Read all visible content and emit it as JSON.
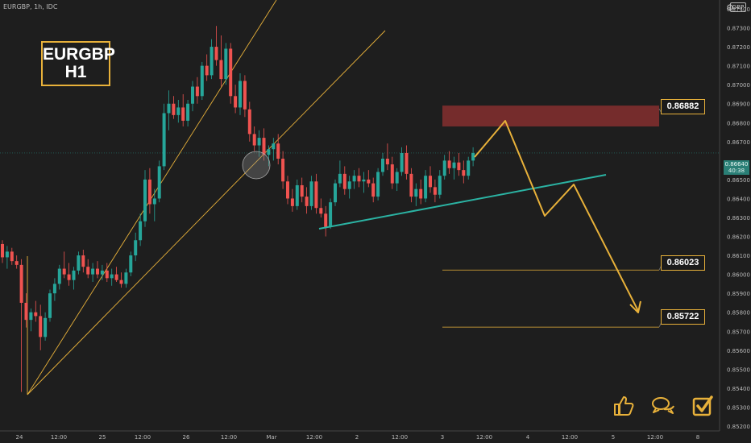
{
  "header": {
    "symbol_line": "EURGBP, 1h, IDC"
  },
  "title": {
    "line1": "EURGBP",
    "line2": "H1"
  },
  "currency_badge": "GBP",
  "current_price": {
    "value": "0.86640",
    "countdown": "40:38"
  },
  "level_labels": [
    "0.86882",
    "0.86023",
    "0.85722"
  ],
  "colors": {
    "background": "#1e1e1e",
    "bull": "#26a69a",
    "bear": "#ef5350",
    "annotation": "#e8b13a",
    "trendline": "#2bb3a3",
    "zone": "#8b2f2f"
  },
  "icons": [
    "thumbs-up-icon",
    "chat-icon",
    "checkbox-icon"
  ],
  "chart_data": {
    "type": "candlestick",
    "y_axis": {
      "range": [
        0.8519,
        0.8755
      ],
      "tick_labels": [
        "0.87400",
        "0.87300",
        "0.87200",
        "0.87100",
        "0.87000",
        "0.86900",
        "0.86800",
        "0.86700",
        "0.86640",
        "0.86500",
        "0.86400",
        "0.86300",
        "0.86200",
        "0.86100",
        "0.86000",
        "0.85900",
        "0.85800",
        "0.85700",
        "0.85600",
        "0.85500",
        "0.85400",
        "0.85300",
        "0.85200"
      ]
    },
    "x_axis": {
      "tick_labels": [
        "24",
        "12:00",
        "25",
        "12:00",
        "26",
        "12:00",
        "Mar",
        "12:00",
        "2",
        "12:00",
        "3",
        "12:00",
        "4",
        "12:00",
        "5",
        "12:00",
        "8"
      ]
    },
    "grid": false,
    "zone": {
      "from": 0.8678,
      "to": 0.8689
    },
    "levels": [
      0.86023,
      0.85722
    ],
    "candles": [
      [
        0.8616,
        0.8618,
        0.8606,
        0.8609
      ],
      [
        0.8609,
        0.8615,
        0.8603,
        0.8612
      ],
      [
        0.8612,
        0.8614,
        0.8605,
        0.8607
      ],
      [
        0.8607,
        0.861,
        0.8603,
        0.8605
      ],
      [
        0.8605,
        0.8608,
        0.8538,
        0.8585
      ],
      [
        0.8585,
        0.859,
        0.8572,
        0.8576
      ],
      [
        0.8576,
        0.8582,
        0.857,
        0.858
      ],
      [
        0.858,
        0.8586,
        0.8575,
        0.8578
      ],
      [
        0.8578,
        0.8584,
        0.856,
        0.8567
      ],
      [
        0.8567,
        0.858,
        0.8565,
        0.8577
      ],
      [
        0.8577,
        0.8592,
        0.8575,
        0.859
      ],
      [
        0.859,
        0.8598,
        0.8586,
        0.8595
      ],
      [
        0.8595,
        0.8605,
        0.8592,
        0.8603
      ],
      [
        0.8603,
        0.8612,
        0.8598,
        0.86
      ],
      [
        0.86,
        0.8606,
        0.8594,
        0.8597
      ],
      [
        0.8597,
        0.8604,
        0.8592,
        0.8602
      ],
      [
        0.8602,
        0.8612,
        0.86,
        0.861
      ],
      [
        0.861,
        0.8613,
        0.8601,
        0.8604
      ],
      [
        0.8604,
        0.8608,
        0.8598,
        0.86
      ],
      [
        0.86,
        0.8606,
        0.8596,
        0.8603
      ],
      [
        0.8603,
        0.8607,
        0.8598,
        0.86
      ],
      [
        0.86,
        0.8605,
        0.8597,
        0.8602
      ],
      [
        0.8602,
        0.8606,
        0.8596,
        0.8598
      ],
      [
        0.8598,
        0.8603,
        0.8594,
        0.86
      ],
      [
        0.86,
        0.8604,
        0.8596,
        0.8597
      ],
      [
        0.8597,
        0.8601,
        0.8593,
        0.8595
      ],
      [
        0.8595,
        0.8603,
        0.8593,
        0.8601
      ],
      [
        0.8601,
        0.8612,
        0.8599,
        0.861
      ],
      [
        0.861,
        0.8622,
        0.8607,
        0.8618
      ],
      [
        0.8618,
        0.8632,
        0.8615,
        0.8628
      ],
      [
        0.8628,
        0.8655,
        0.8625,
        0.865
      ],
      [
        0.865,
        0.8656,
        0.8632,
        0.8637
      ],
      [
        0.8637,
        0.8645,
        0.8628,
        0.864
      ],
      [
        0.864,
        0.866,
        0.8638,
        0.8657
      ],
      [
        0.8657,
        0.869,
        0.8655,
        0.8685
      ],
      [
        0.8685,
        0.8697,
        0.8676,
        0.869
      ],
      [
        0.869,
        0.8694,
        0.8682,
        0.8684
      ],
      [
        0.8684,
        0.8692,
        0.868,
        0.8688
      ],
      [
        0.8688,
        0.8695,
        0.8678,
        0.8681
      ],
      [
        0.8681,
        0.8692,
        0.8678,
        0.869
      ],
      [
        0.869,
        0.8702,
        0.8686,
        0.8699
      ],
      [
        0.8699,
        0.8704,
        0.869,
        0.8694
      ],
      [
        0.8694,
        0.8712,
        0.8692,
        0.871
      ],
      [
        0.871,
        0.8716,
        0.8702,
        0.8705
      ],
      [
        0.8705,
        0.8724,
        0.8703,
        0.872
      ],
      [
        0.872,
        0.8731,
        0.871,
        0.8713
      ],
      [
        0.8713,
        0.8726,
        0.8699,
        0.8703
      ],
      [
        0.8703,
        0.8722,
        0.87,
        0.8719
      ],
      [
        0.8719,
        0.8722,
        0.869,
        0.8694
      ],
      [
        0.8694,
        0.87,
        0.8685,
        0.8688
      ],
      [
        0.8688,
        0.8706,
        0.8684,
        0.8702
      ],
      [
        0.8702,
        0.8705,
        0.8683,
        0.8687
      ],
      [
        0.8687,
        0.8691,
        0.867,
        0.8674
      ],
      [
        0.8674,
        0.8678,
        0.8665,
        0.8668
      ],
      [
        0.8668,
        0.8676,
        0.8662,
        0.8672
      ],
      [
        0.8672,
        0.8677,
        0.866,
        0.8663
      ],
      [
        0.8663,
        0.8668,
        0.8657,
        0.8666
      ],
      [
        0.8666,
        0.8672,
        0.866,
        0.8669
      ],
      [
        0.8669,
        0.8674,
        0.8658,
        0.8661
      ],
      [
        0.8661,
        0.8665,
        0.8645,
        0.8649
      ],
      [
        0.8649,
        0.8652,
        0.8637,
        0.864
      ],
      [
        0.864,
        0.8645,
        0.8633,
        0.8636
      ],
      [
        0.8636,
        0.865,
        0.8634,
        0.8647
      ],
      [
        0.8647,
        0.8651,
        0.8638,
        0.8641
      ],
      [
        0.8641,
        0.8646,
        0.8632,
        0.8636
      ],
      [
        0.8636,
        0.8652,
        0.8634,
        0.8649
      ],
      [
        0.8649,
        0.8653,
        0.8632,
        0.8635
      ],
      [
        0.8635,
        0.864,
        0.863,
        0.8632
      ],
      [
        0.8632,
        0.8636,
        0.862,
        0.8625
      ],
      [
        0.8625,
        0.864,
        0.8624,
        0.8638
      ],
      [
        0.8638,
        0.865,
        0.8636,
        0.8648
      ],
      [
        0.8648,
        0.866,
        0.8646,
        0.8653
      ],
      [
        0.8653,
        0.8657,
        0.8642,
        0.8645
      ],
      [
        0.8645,
        0.8652,
        0.864,
        0.8649
      ],
      [
        0.8649,
        0.8655,
        0.8645,
        0.8652
      ],
      [
        0.8652,
        0.8656,
        0.8646,
        0.8649
      ],
      [
        0.8649,
        0.8654,
        0.8643,
        0.865
      ],
      [
        0.865,
        0.8655,
        0.8646,
        0.8648
      ],
      [
        0.8648,
        0.8651,
        0.8638,
        0.8641
      ],
      [
        0.8641,
        0.8656,
        0.8639,
        0.8654
      ],
      [
        0.8654,
        0.8664,
        0.8652,
        0.8661
      ],
      [
        0.8661,
        0.8669,
        0.8655,
        0.8658
      ],
      [
        0.8658,
        0.8662,
        0.8645,
        0.8648
      ],
      [
        0.8648,
        0.8656,
        0.8644,
        0.8654
      ],
      [
        0.8654,
        0.8667,
        0.8652,
        0.8664
      ],
      [
        0.8664,
        0.8668,
        0.865,
        0.8653
      ],
      [
        0.8653,
        0.8656,
        0.8638,
        0.8641
      ],
      [
        0.8641,
        0.8648,
        0.8636,
        0.8645
      ],
      [
        0.8645,
        0.865,
        0.8637,
        0.864
      ],
      [
        0.864,
        0.8655,
        0.8638,
        0.8652
      ],
      [
        0.8652,
        0.8657,
        0.8643,
        0.8646
      ],
      [
        0.8646,
        0.865,
        0.8638,
        0.8642
      ],
      [
        0.8642,
        0.8655,
        0.864,
        0.8652
      ],
      [
        0.8652,
        0.8663,
        0.865,
        0.866
      ],
      [
        0.866,
        0.8665,
        0.8653,
        0.8656
      ],
      [
        0.8656,
        0.8662,
        0.865,
        0.8659
      ],
      [
        0.8659,
        0.8664,
        0.8652,
        0.8655
      ],
      [
        0.8655,
        0.866,
        0.8648,
        0.8652
      ],
      [
        0.8652,
        0.8662,
        0.865,
        0.866
      ],
      [
        0.866,
        0.8667,
        0.8657,
        0.8664
      ]
    ],
    "projection": [
      [
        0.8668,
        0.8688
      ],
      [
        0.8688,
        0.8635
      ],
      [
        0.8635,
        0.8652
      ],
      [
        0.8652,
        0.8583
      ]
    ],
    "trendlines": [
      "ascending channel",
      "support trendline"
    ]
  }
}
